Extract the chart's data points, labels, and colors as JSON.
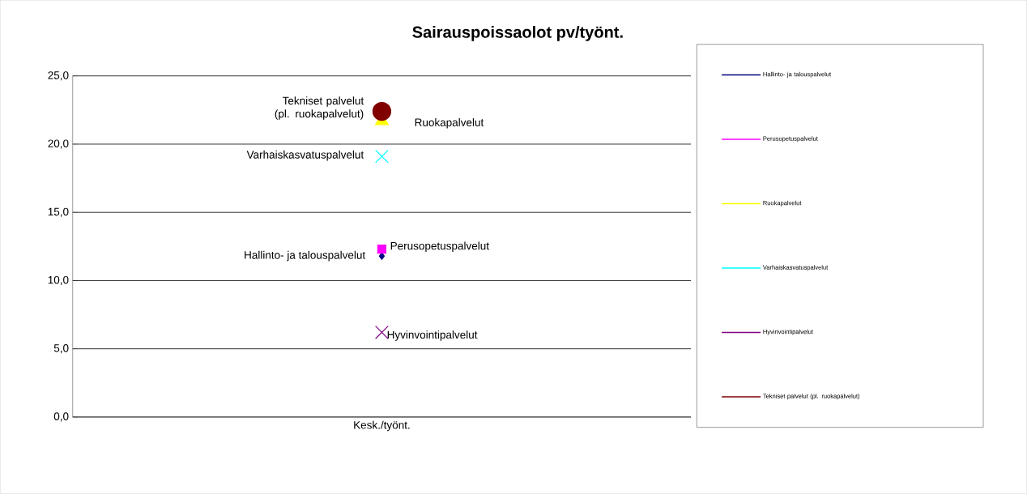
{
  "chart_data": {
    "type": "line",
    "title": "Sairauspoissaolot pv/työnt.",
    "categories": [
      "Kesk./työnt."
    ],
    "series": [
      {
        "name": "Hallinto- ja talouspalvelut",
        "color": "#000080",
        "marker": "diamond",
        "values": [
          11.8
        ]
      },
      {
        "name": "Perusopetuspalvelut",
        "color": "#ff00ff",
        "marker": "square",
        "values": [
          12.3
        ]
      },
      {
        "name": "Ruokapalvelut",
        "color": "#ffff00",
        "marker": "triangle",
        "values": [
          21.7
        ]
      },
      {
        "name": "Varhaiskasvatuspalvelut",
        "color": "#00ffff",
        "marker": "cross",
        "values": [
          19.1
        ]
      },
      {
        "name": "Hyvinvointipalvelut",
        "color": "#800080",
        "marker": "cross",
        "values": [
          6.2
        ]
      },
      {
        "name": "Tekniset palvelut (pl. ruokapalvelut)",
        "color": "#800000",
        "marker": "circle",
        "values": [
          22.4
        ]
      }
    ],
    "ylim": [
      0,
      25
    ],
    "yticks": [
      {
        "value": 0,
        "label": "0,0"
      },
      {
        "value": 5,
        "label": "5,0"
      },
      {
        "value": 10,
        "label": "10,0"
      },
      {
        "value": 15,
        "label": "15,0"
      },
      {
        "value": 20,
        "label": "20,0"
      },
      {
        "value": 25,
        "label": "25,0"
      }
    ],
    "grid": "y",
    "legend": "right"
  }
}
